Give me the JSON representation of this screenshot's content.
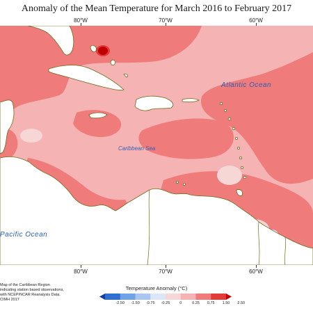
{
  "title": "Anomaly of the Mean Temperature for March 2016 to February 2017",
  "longitudes": [
    "80°W",
    "70°W",
    "60°W"
  ],
  "labels": {
    "atlantic": "Atlantic Ocean",
    "caribbean": "Caribbean Sea",
    "pacific": "Pacific Ocean"
  },
  "credits": [
    "Map of the Caribbean Region",
    "indicating station based observations,",
    "with NCEP/NCAR Reanalysis Data.",
    "CIMH 2017"
  ],
  "legend": {
    "title": "Temperature Anomaly (°C)",
    "ticks": [
      "-2.50",
      "-1.50",
      "-0.75",
      "-0.25",
      "0",
      "0.25",
      "0.75",
      "1.50",
      "2.50"
    ],
    "colors": [
      "#0b3fa0",
      "#2f6fd0",
      "#6fa2e6",
      "#a9c6f0",
      "#dbe6f7",
      "#f7d6d6",
      "#f6b3b3",
      "#ef7b7b",
      "#e33a3a",
      "#c00000"
    ]
  }
}
